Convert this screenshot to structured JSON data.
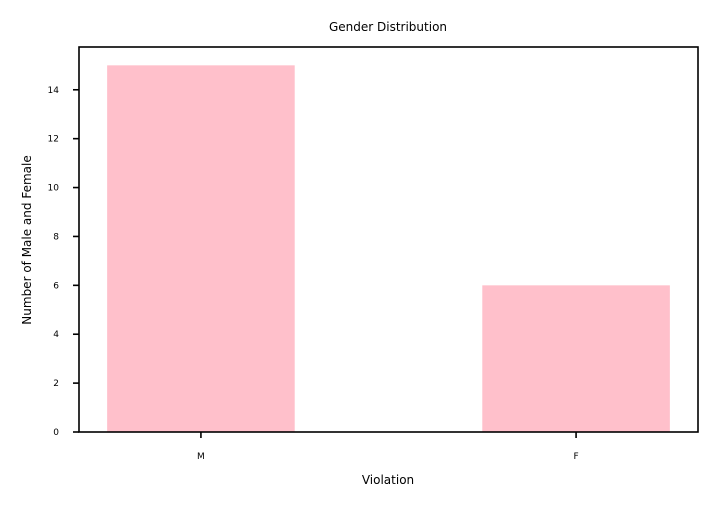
{
  "chart_data": {
    "type": "bar",
    "title": "Gender Distribution",
    "xlabel": "Violation",
    "ylabel": "Number of Male and Female",
    "categories": [
      "M",
      "F"
    ],
    "values": [
      15,
      6
    ],
    "ylim": [
      0,
      15.75
    ],
    "yticks": [
      0,
      2,
      4,
      6,
      8,
      10,
      12,
      14
    ],
    "ytick_labels": [
      "0",
      "2",
      "4",
      "6",
      "8",
      "10",
      "12",
      "14"
    ],
    "bar_color": "#ffc0cb",
    "grid": false,
    "legend": "none"
  }
}
